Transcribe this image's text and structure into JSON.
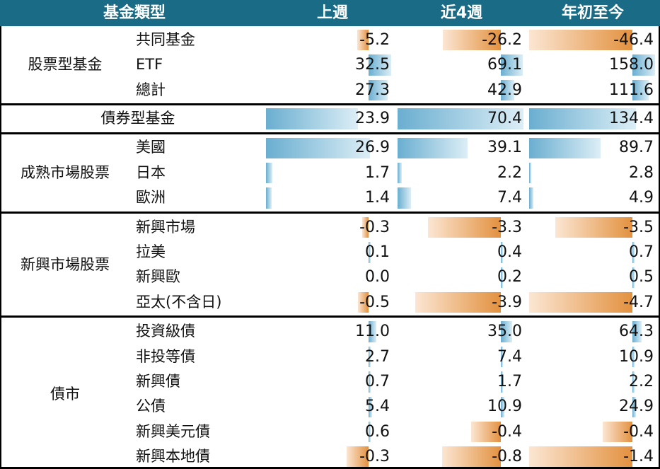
{
  "headers": [
    "基金類型",
    "上週",
    "近4週",
    "年初至今"
  ],
  "groups": [
    {
      "name": "股票型基金",
      "rows": [
        {
          "label": "共同基金",
          "values": [
            -5.2,
            -26.2,
            -46.4
          ]
        },
        {
          "label": "ETF",
          "values": [
            32.5,
            69.1,
            158.0
          ]
        },
        {
          "label": "總計",
          "values": [
            27.3,
            42.9,
            111.6
          ]
        }
      ]
    },
    {
      "name": "債券型基金",
      "rows": [
        {
          "label": "",
          "values": [
            23.9,
            70.4,
            134.4
          ]
        }
      ]
    },
    {
      "name": "成熟市場股票",
      "rows": [
        {
          "label": "美國",
          "values": [
            26.9,
            39.1,
            89.7
          ]
        },
        {
          "label": "日本",
          "values": [
            1.7,
            2.2,
            2.8
          ]
        },
        {
          "label": "歐洲",
          "values": [
            1.4,
            7.4,
            4.9
          ]
        }
      ]
    },
    {
      "name": "新興市場股票",
      "rows": [
        {
          "label": "新興市場",
          "values": [
            -0.3,
            -3.3,
            -3.5
          ]
        },
        {
          "label": "拉美",
          "values": [
            0.1,
            0.4,
            0.7
          ]
        },
        {
          "label": "新興歐",
          "values": [
            0.0,
            0.2,
            0.5
          ]
        },
        {
          "label": "亞太(不含日)",
          "values": [
            -0.5,
            -3.9,
            -4.7
          ]
        }
      ]
    },
    {
      "name": "債市",
      "rows": [
        {
          "label": "投資級債",
          "values": [
            11.0,
            35.0,
            64.3
          ]
        },
        {
          "label": "非投等債",
          "values": [
            2.7,
            7.4,
            10.9
          ]
        },
        {
          "label": "新興債",
          "values": [
            0.7,
            1.7,
            2.2
          ]
        },
        {
          "label": "公債",
          "values": [
            5.4,
            10.9,
            24.9
          ]
        },
        {
          "label": "新興美元債",
          "values": [
            0.6,
            -0.4,
            -0.4
          ]
        },
        {
          "label": "新興本地債",
          "values": [
            -0.3,
            -0.8,
            -1.4
          ]
        }
      ]
    }
  ],
  "colors": {
    "header_bg": "#1a6b85",
    "positive": "#6aaed0",
    "negative": "#e3913f"
  }
}
